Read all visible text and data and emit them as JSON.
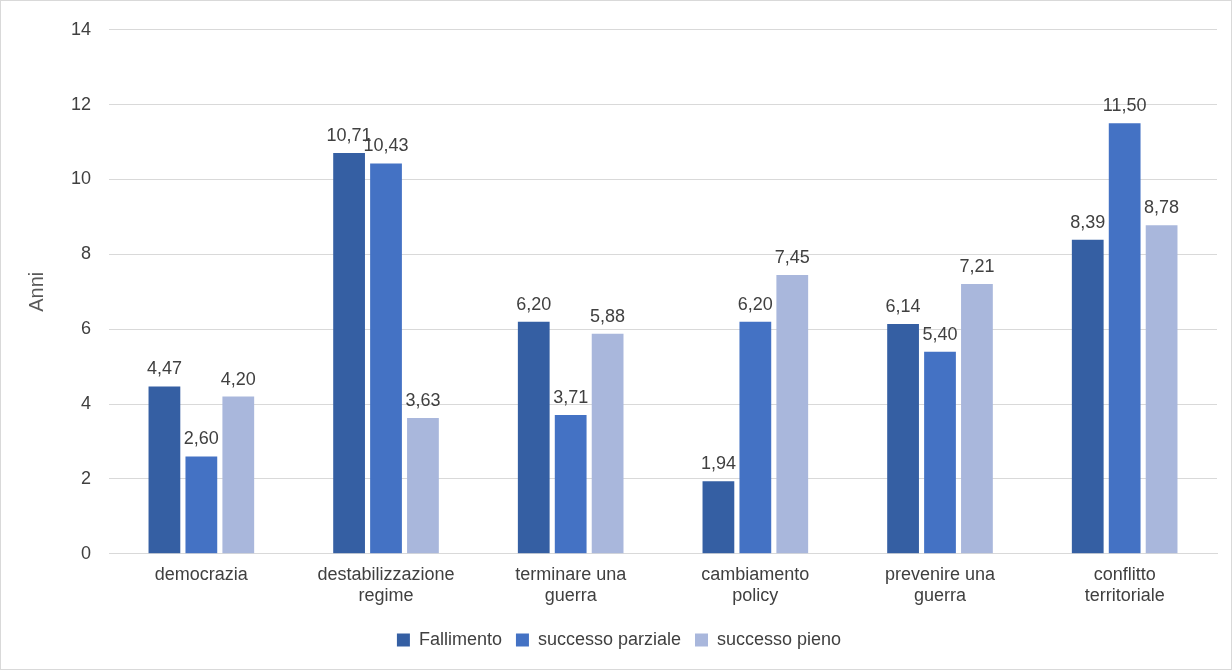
{
  "chart_data": {
    "type": "bar",
    "ylabel": "Anni",
    "categories": [
      "democrazia",
      "destabilizzazione regime",
      "terminare una guerra",
      "cambiamento policy",
      "prevenire una guerra",
      "conflitto territoriale"
    ],
    "series": [
      {
        "name": "Fallimento",
        "color": "#355fa3",
        "values": [
          4.47,
          10.71,
          6.2,
          1.94,
          6.14,
          8.39
        ],
        "value_labels": [
          "4,47",
          "10,71",
          "6,20",
          "1,94",
          "6,14",
          "8,39"
        ]
      },
      {
        "name": "successo parziale",
        "color": "#4472c4",
        "values": [
          2.6,
          10.43,
          3.71,
          6.2,
          5.4,
          11.5
        ],
        "value_labels": [
          "2,60",
          "10,43",
          "3,71",
          "6,20",
          "5,40",
          "11,50"
        ]
      },
      {
        "name": "successo pieno",
        "color": "#a9b7dc",
        "values": [
          4.2,
          3.63,
          5.88,
          7.45,
          7.21,
          8.78
        ],
        "value_labels": [
          "4,20",
          "3,63",
          "5,88",
          "7,45",
          "7,21",
          "8,78"
        ]
      }
    ],
    "ylim": [
      0,
      14
    ],
    "yticks": [
      0,
      2,
      4,
      6,
      8,
      10,
      12,
      14
    ],
    "grid": "y",
    "legend": "bottom"
  }
}
